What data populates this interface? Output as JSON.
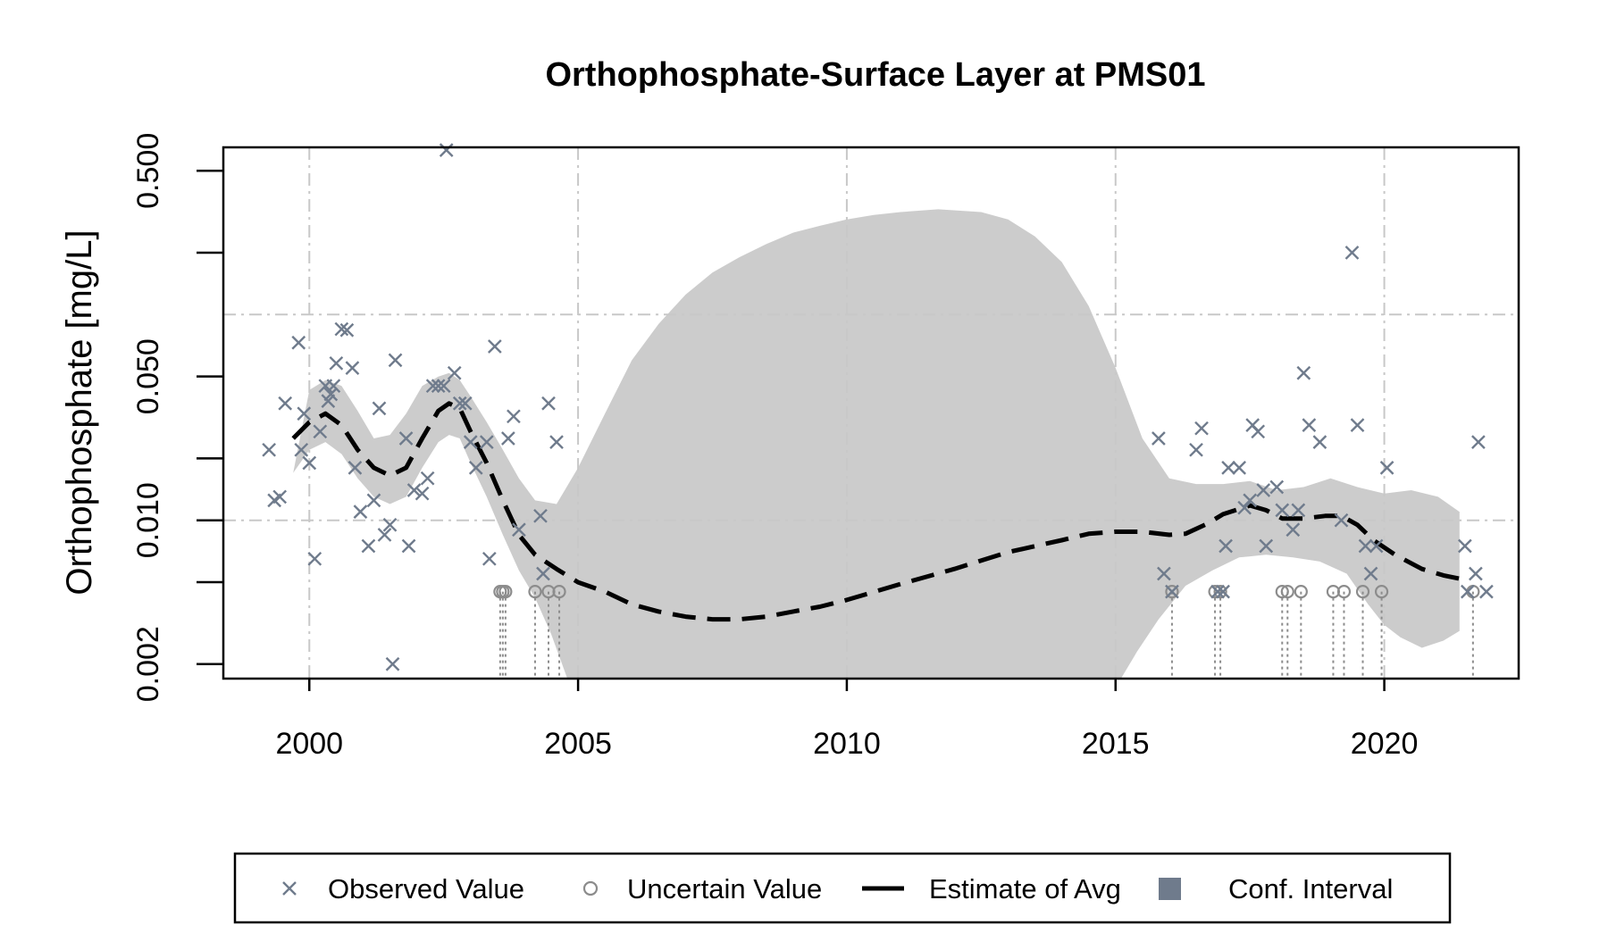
{
  "chart_data": {
    "type": "scatter",
    "title": "Orthophosphate-Surface Layer at PMS01",
    "xlabel": "",
    "ylabel": "Orthophosphate [mg/L]",
    "y_scale": "log",
    "xlim": [
      1998.4,
      2022.5
    ],
    "ylim": [
      0.0017,
      0.65
    ],
    "x_ticks": [
      2000,
      2005,
      2010,
      2015,
      2020
    ],
    "x_tick_labels": [
      "2000",
      "2005",
      "2010",
      "2015",
      "2020"
    ],
    "y_ticks": [
      0.002,
      0.01,
      0.05,
      0.5
    ],
    "y_tick_labels": [
      "0.002",
      "0.010",
      "0.050",
      "0.500"
    ],
    "y_minor_ticks": [
      0.005,
      0.02,
      0.2
    ],
    "grid_x": [
      2000,
      2005,
      2010,
      2015,
      2020
    ],
    "grid_y": [
      0.01,
      0.1
    ],
    "grid": true,
    "legend_position": "bottom",
    "colors": {
      "observed": "#6f7b8c",
      "uncertain": "#8c8c8c",
      "estimate": "#000000",
      "conf_fill": "#cccccc",
      "legend_conf": "#6f7b8c",
      "grid": "#c8c8c8"
    },
    "legend": [
      {
        "label": "Observed Value",
        "symbol": "cross"
      },
      {
        "label": "Uncertain Value",
        "symbol": "circle"
      },
      {
        "label": "Estimate of Avg",
        "symbol": "dashed-line"
      },
      {
        "label": "Conf. Interval",
        "symbol": "square"
      }
    ],
    "series": [
      {
        "name": "Observed Value",
        "points": [
          [
            1999.25,
            0.022
          ],
          [
            1999.35,
            0.0125
          ],
          [
            1999.45,
            0.013
          ],
          [
            1999.55,
            0.037
          ],
          [
            1999.8,
            0.073
          ],
          [
            1999.85,
            0.022
          ],
          [
            1999.9,
            0.033
          ],
          [
            2000.0,
            0.019
          ],
          [
            2000.1,
            0.0065
          ],
          [
            2000.2,
            0.027
          ],
          [
            2000.3,
            0.045
          ],
          [
            2000.35,
            0.038
          ],
          [
            2000.4,
            0.041
          ],
          [
            2000.45,
            0.045
          ],
          [
            2000.5,
            0.058
          ],
          [
            2000.6,
            0.085
          ],
          [
            2000.7,
            0.084
          ],
          [
            2000.8,
            0.055
          ],
          [
            2000.85,
            0.018
          ],
          [
            2000.95,
            0.011
          ],
          [
            2001.1,
            0.0075
          ],
          [
            2001.2,
            0.0125
          ],
          [
            2001.3,
            0.035
          ],
          [
            2001.4,
            0.0085
          ],
          [
            2001.5,
            0.0095
          ],
          [
            2001.55,
            0.002
          ],
          [
            2001.6,
            0.06
          ],
          [
            2001.8,
            0.025
          ],
          [
            2001.85,
            0.0075
          ],
          [
            2001.95,
            0.014
          ],
          [
            2002.1,
            0.0135
          ],
          [
            2002.2,
            0.016
          ],
          [
            2002.3,
            0.045
          ],
          [
            2002.4,
            0.045
          ],
          [
            2002.5,
            0.045
          ],
          [
            2002.55,
            0.63
          ],
          [
            2002.7,
            0.052
          ],
          [
            2002.8,
            0.037
          ],
          [
            2002.9,
            0.037
          ],
          [
            2003.0,
            0.024
          ],
          [
            2003.1,
            0.018
          ],
          [
            2003.3,
            0.024
          ],
          [
            2003.35,
            0.0065
          ],
          [
            2003.45,
            0.07
          ],
          [
            2003.7,
            0.025
          ],
          [
            2003.8,
            0.032
          ],
          [
            2003.9,
            0.009
          ],
          [
            2004.3,
            0.0105
          ],
          [
            2004.35,
            0.0055
          ],
          [
            2004.45,
            0.037
          ],
          [
            2004.6,
            0.024
          ],
          [
            2015.8,
            0.025
          ],
          [
            2015.9,
            0.0055
          ],
          [
            2016.05,
            0.0045
          ],
          [
            2016.5,
            0.022
          ],
          [
            2016.6,
            0.028
          ],
          [
            2016.9,
            0.0045
          ],
          [
            2017.0,
            0.0045
          ],
          [
            2017.05,
            0.0075
          ],
          [
            2017.1,
            0.018
          ],
          [
            2017.3,
            0.018
          ],
          [
            2017.4,
            0.0115
          ],
          [
            2017.5,
            0.0125
          ],
          [
            2017.55,
            0.029
          ],
          [
            2017.65,
            0.027
          ],
          [
            2017.75,
            0.014
          ],
          [
            2017.8,
            0.0075
          ],
          [
            2018.0,
            0.0145
          ],
          [
            2018.1,
            0.0112
          ],
          [
            2018.3,
            0.009
          ],
          [
            2018.4,
            0.0112
          ],
          [
            2018.5,
            0.052
          ],
          [
            2018.6,
            0.029
          ],
          [
            2018.8,
            0.024
          ],
          [
            2019.2,
            0.01
          ],
          [
            2019.4,
            0.2
          ],
          [
            2019.5,
            0.029
          ],
          [
            2019.65,
            0.0075
          ],
          [
            2019.75,
            0.0055
          ],
          [
            2019.85,
            0.0075
          ],
          [
            2020.05,
            0.018
          ],
          [
            2021.5,
            0.0075
          ],
          [
            2021.55,
            0.0045
          ],
          [
            2021.7,
            0.0055
          ],
          [
            2021.75,
            0.024
          ],
          [
            2021.9,
            0.0045
          ]
        ]
      },
      {
        "name": "Uncertain Value",
        "points": [
          [
            2003.55,
            0.0045
          ],
          [
            2003.6,
            0.0045
          ],
          [
            2003.65,
            0.0045
          ],
          [
            2004.2,
            0.0045
          ],
          [
            2004.45,
            0.0045
          ],
          [
            2004.65,
            0.0045
          ],
          [
            2016.05,
            0.0045
          ],
          [
            2016.85,
            0.0045
          ],
          [
            2016.95,
            0.0045
          ],
          [
            2018.1,
            0.0045
          ],
          [
            2018.2,
            0.0045
          ],
          [
            2018.45,
            0.0045
          ],
          [
            2019.05,
            0.0045
          ],
          [
            2019.25,
            0.0045
          ],
          [
            2019.6,
            0.0045
          ],
          [
            2019.95,
            0.0045
          ],
          [
            2021.65,
            0.0045
          ]
        ]
      },
      {
        "name": "Estimate of Avg",
        "points": [
          [
            1999.7,
            0.025
          ],
          [
            2000.0,
            0.03
          ],
          [
            2000.3,
            0.033
          ],
          [
            2000.6,
            0.029
          ],
          [
            2000.9,
            0.022
          ],
          [
            2001.2,
            0.018
          ],
          [
            2001.5,
            0.0165
          ],
          [
            2001.8,
            0.018
          ],
          [
            2002.1,
            0.025
          ],
          [
            2002.4,
            0.034
          ],
          [
            2002.6,
            0.037
          ],
          [
            2002.8,
            0.035
          ],
          [
            2003.0,
            0.027
          ],
          [
            2003.3,
            0.019
          ],
          [
            2003.6,
            0.0125
          ],
          [
            2003.9,
            0.0085
          ],
          [
            2004.2,
            0.0068
          ],
          [
            2004.6,
            0.0058
          ],
          [
            2005.0,
            0.005
          ],
          [
            2005.5,
            0.0045
          ],
          [
            2006.0,
            0.0039
          ],
          [
            2006.5,
            0.0036
          ],
          [
            2007.0,
            0.0034
          ],
          [
            2007.5,
            0.0033
          ],
          [
            2008.0,
            0.0033
          ],
          [
            2008.5,
            0.0034
          ],
          [
            2009.0,
            0.0036
          ],
          [
            2009.5,
            0.0038
          ],
          [
            2010.0,
            0.0041
          ],
          [
            2011.0,
            0.0049
          ],
          [
            2012.0,
            0.0058
          ],
          [
            2013.0,
            0.007
          ],
          [
            2014.0,
            0.008
          ],
          [
            2014.5,
            0.0086
          ],
          [
            2015.0,
            0.0088
          ],
          [
            2015.5,
            0.0088
          ],
          [
            2016.0,
            0.0085
          ],
          [
            2016.3,
            0.0086
          ],
          [
            2016.7,
            0.0096
          ],
          [
            2017.0,
            0.0107
          ],
          [
            2017.5,
            0.0118
          ],
          [
            2017.8,
            0.0112
          ],
          [
            2018.1,
            0.0102
          ],
          [
            2018.5,
            0.0102
          ],
          [
            2018.9,
            0.0105
          ],
          [
            2019.2,
            0.0105
          ],
          [
            2019.5,
            0.0095
          ],
          [
            2019.8,
            0.008
          ],
          [
            2020.2,
            0.0068
          ],
          [
            2020.7,
            0.0058
          ],
          [
            2021.1,
            0.0054
          ],
          [
            2021.4,
            0.0052
          ]
        ]
      },
      {
        "name": "Conf. Interval",
        "upper": [
          [
            1999.7,
            0.017
          ],
          [
            2000.0,
            0.043
          ],
          [
            2000.3,
            0.048
          ],
          [
            2000.6,
            0.045
          ],
          [
            2000.9,
            0.034
          ],
          [
            2001.2,
            0.025
          ],
          [
            2001.5,
            0.026
          ],
          [
            2001.8,
            0.033
          ],
          [
            2002.1,
            0.045
          ],
          [
            2002.4,
            0.05
          ],
          [
            2002.6,
            0.052
          ],
          [
            2002.8,
            0.048
          ],
          [
            2003.0,
            0.04
          ],
          [
            2003.3,
            0.03
          ],
          [
            2003.6,
            0.022
          ],
          [
            2003.9,
            0.016
          ],
          [
            2004.2,
            0.0125
          ],
          [
            2004.6,
            0.012
          ],
          [
            2005.0,
            0.018
          ],
          [
            2005.5,
            0.033
          ],
          [
            2006.0,
            0.06
          ],
          [
            2006.5,
            0.09
          ],
          [
            2007.0,
            0.125
          ],
          [
            2007.5,
            0.16
          ],
          [
            2008.0,
            0.19
          ],
          [
            2008.5,
            0.22
          ],
          [
            2009.0,
            0.25
          ],
          [
            2009.5,
            0.27
          ],
          [
            2010.0,
            0.29
          ],
          [
            2010.5,
            0.305
          ],
          [
            2011.0,
            0.315
          ],
          [
            2011.7,
            0.325
          ],
          [
            2012.5,
            0.315
          ],
          [
            2013.0,
            0.29
          ],
          [
            2013.5,
            0.24
          ],
          [
            2014.0,
            0.18
          ],
          [
            2014.5,
            0.11
          ],
          [
            2015.0,
            0.055
          ],
          [
            2015.5,
            0.025
          ],
          [
            2016.0,
            0.016
          ],
          [
            2016.5,
            0.015
          ],
          [
            2017.0,
            0.015
          ],
          [
            2017.5,
            0.0155
          ],
          [
            2018.0,
            0.014
          ],
          [
            2018.5,
            0.0145
          ],
          [
            2019.0,
            0.016
          ],
          [
            2019.5,
            0.0145
          ],
          [
            2020.0,
            0.0135
          ],
          [
            2020.5,
            0.014
          ],
          [
            2021.0,
            0.013
          ],
          [
            2021.4,
            0.011
          ]
        ],
        "lower": [
          [
            1999.7,
            0.017
          ],
          [
            2000.0,
            0.022
          ],
          [
            2000.3,
            0.024
          ],
          [
            2000.6,
            0.021
          ],
          [
            2000.9,
            0.016
          ],
          [
            2001.2,
            0.013
          ],
          [
            2001.5,
            0.012
          ],
          [
            2001.8,
            0.013
          ],
          [
            2002.1,
            0.018
          ],
          [
            2002.4,
            0.024
          ],
          [
            2002.6,
            0.026
          ],
          [
            2002.8,
            0.025
          ],
          [
            2003.0,
            0.019
          ],
          [
            2003.3,
            0.013
          ],
          [
            2003.6,
            0.0085
          ],
          [
            2003.9,
            0.0057
          ],
          [
            2004.2,
            0.0042
          ],
          [
            2004.5,
            0.0028
          ],
          [
            2004.8,
            0.0017
          ],
          [
            2015.1,
            0.0017
          ],
          [
            2015.4,
            0.0023
          ],
          [
            2015.8,
            0.0033
          ],
          [
            2016.3,
            0.0048
          ],
          [
            2016.8,
            0.0057
          ],
          [
            2017.3,
            0.0066
          ],
          [
            2017.8,
            0.0068
          ],
          [
            2018.3,
            0.0066
          ],
          [
            2018.8,
            0.0063
          ],
          [
            2019.3,
            0.0055
          ],
          [
            2019.7,
            0.0039
          ],
          [
            2020.0,
            0.0031
          ],
          [
            2020.3,
            0.0027
          ],
          [
            2020.7,
            0.0024
          ],
          [
            2021.1,
            0.0026
          ],
          [
            2021.4,
            0.0029
          ]
        ]
      }
    ]
  }
}
